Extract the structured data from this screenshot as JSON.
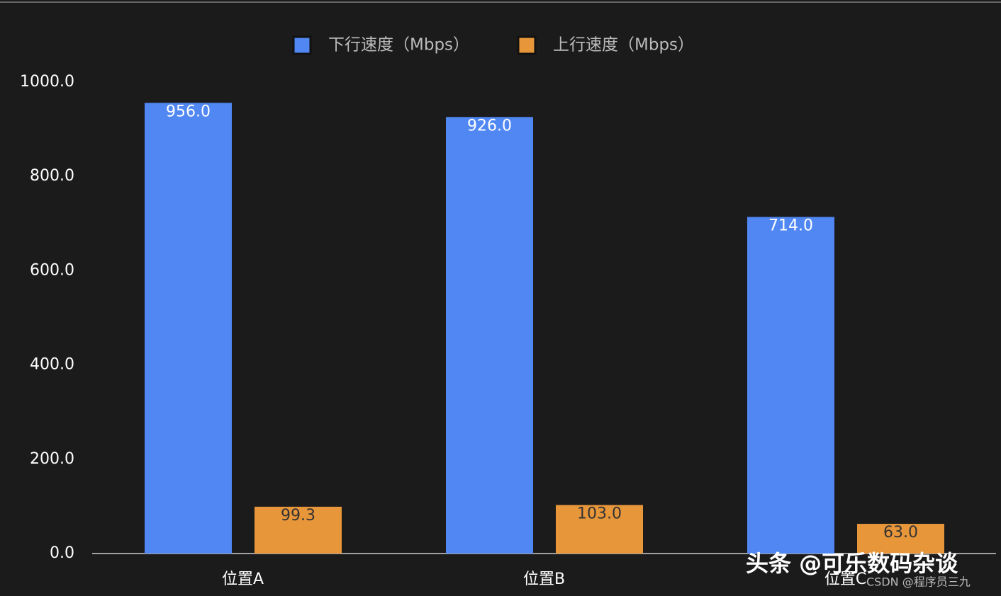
{
  "chart_data": {
    "type": "bar",
    "categories": [
      "位置A",
      "位置B",
      "位置C"
    ],
    "series": [
      {
        "name": "下行速度（Mbps）",
        "color": "#5087f2",
        "values": [
          956,
          926,
          714
        ],
        "value_labels": [
          "956.0",
          "926.0",
          "714.0"
        ]
      },
      {
        "name": "上行速度（Mbps）",
        "color": "#e8963a",
        "values": [
          99.3,
          103,
          63
        ],
        "value_labels": [
          "99.3",
          "103.0",
          "63.0"
        ]
      }
    ],
    "ylim": [
      0,
      1000
    ],
    "yticks": [
      {
        "value": 0,
        "label": "0.0"
      },
      {
        "value": 200,
        "label": "200.0"
      },
      {
        "value": 400,
        "label": "400.0"
      },
      {
        "value": 600,
        "label": "600.0"
      },
      {
        "value": 800,
        "label": "800.0"
      },
      {
        "value": 1000,
        "label": "1000.0"
      }
    ],
    "grid": false,
    "legend": "top",
    "watermarks": [
      "头条 @可乐数码杂谈",
      "CSDN @程序员三九"
    ]
  }
}
